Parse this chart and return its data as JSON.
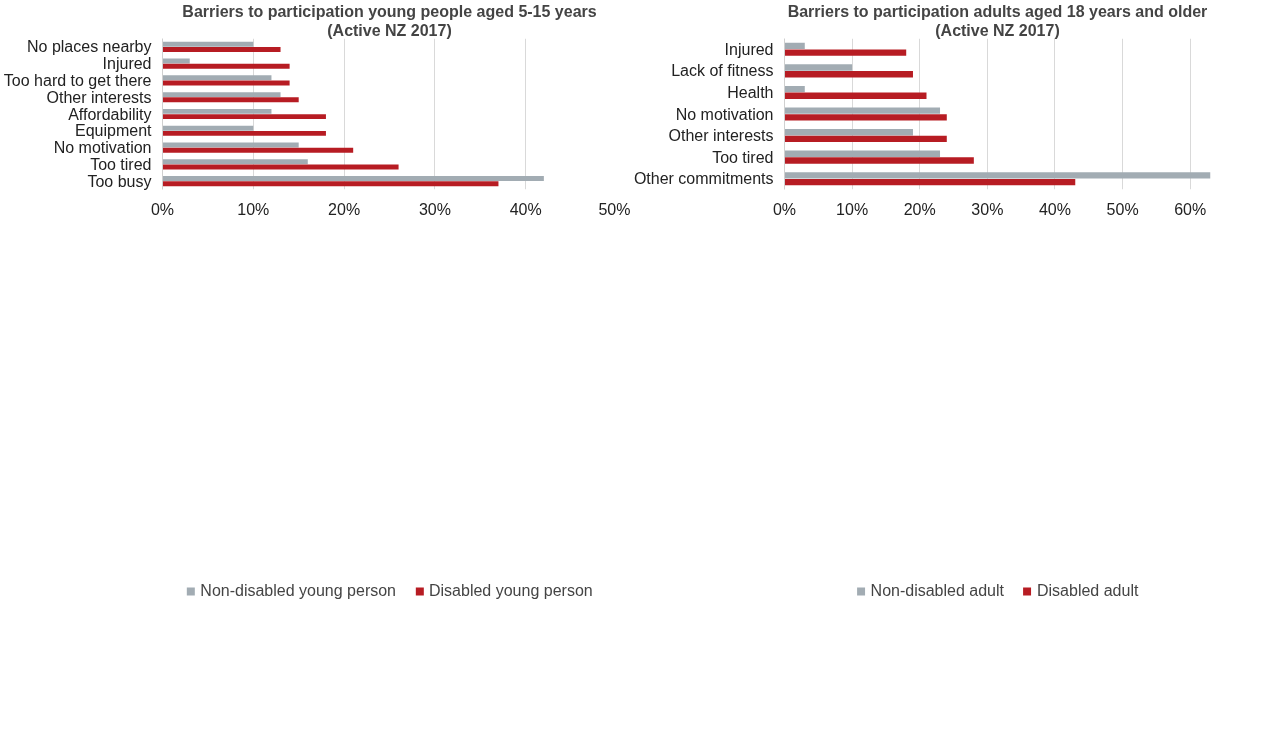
{
  "chart_data": [
    {
      "type": "bar",
      "orientation": "horizontal",
      "title": "Barriers to participation young people aged 5-15 years",
      "subtitle": "(Active NZ 2017)",
      "categories": [
        "No places nearby",
        "Injured",
        "Too hard to get there",
        "Other interests",
        "Affordability",
        "Equipment",
        "No motivation",
        "Too tired",
        "Too busy"
      ],
      "series": [
        {
          "name": "Non-disabled young person",
          "color": "#a2acb3",
          "values": [
            10,
            3,
            12,
            13,
            12,
            10,
            15,
            16,
            42
          ]
        },
        {
          "name": "Disabled young person",
          "color": "#b71c23",
          "values": [
            13,
            14,
            14,
            15,
            18,
            18,
            21,
            26,
            37
          ]
        }
      ],
      "xlim": [
        0,
        50
      ],
      "xticks": [
        {
          "value": 0,
          "label": "0%"
        },
        {
          "value": 10,
          "label": "10%"
        },
        {
          "value": 20,
          "label": "20%"
        },
        {
          "value": 30,
          "label": "30%"
        },
        {
          "value": 40,
          "label": "40%"
        },
        {
          "value": 50,
          "label": "50%"
        }
      ],
      "grid": "x",
      "legend": "bottom"
    },
    {
      "type": "bar",
      "orientation": "horizontal",
      "title": "Barriers to participation adults aged 18 years and older",
      "subtitle": "(Active NZ 2017)",
      "categories": [
        "Injured",
        "Lack of fitness",
        "Health",
        "No motivation",
        "Other interests",
        "Too tired",
        "Other commitments"
      ],
      "series": [
        {
          "name": "Non-disabled adult",
          "color": "#a2acb3",
          "values": [
            3,
            10,
            3,
            23,
            19,
            23,
            63
          ]
        },
        {
          "name": "Disabled adult",
          "color": "#b71c23",
          "values": [
            18,
            19,
            21,
            24,
            24,
            28,
            43
          ]
        }
      ],
      "xlim": [
        0,
        63
      ],
      "xticks": [
        {
          "value": 0,
          "label": "0%"
        },
        {
          "value": 10,
          "label": "10%"
        },
        {
          "value": 20,
          "label": "20%"
        },
        {
          "value": 30,
          "label": "30%"
        },
        {
          "value": 40,
          "label": "40%"
        },
        {
          "value": 50,
          "label": "50%"
        },
        {
          "value": 60,
          "label": "60%"
        }
      ],
      "grid": "x",
      "legend": "bottom"
    }
  ]
}
